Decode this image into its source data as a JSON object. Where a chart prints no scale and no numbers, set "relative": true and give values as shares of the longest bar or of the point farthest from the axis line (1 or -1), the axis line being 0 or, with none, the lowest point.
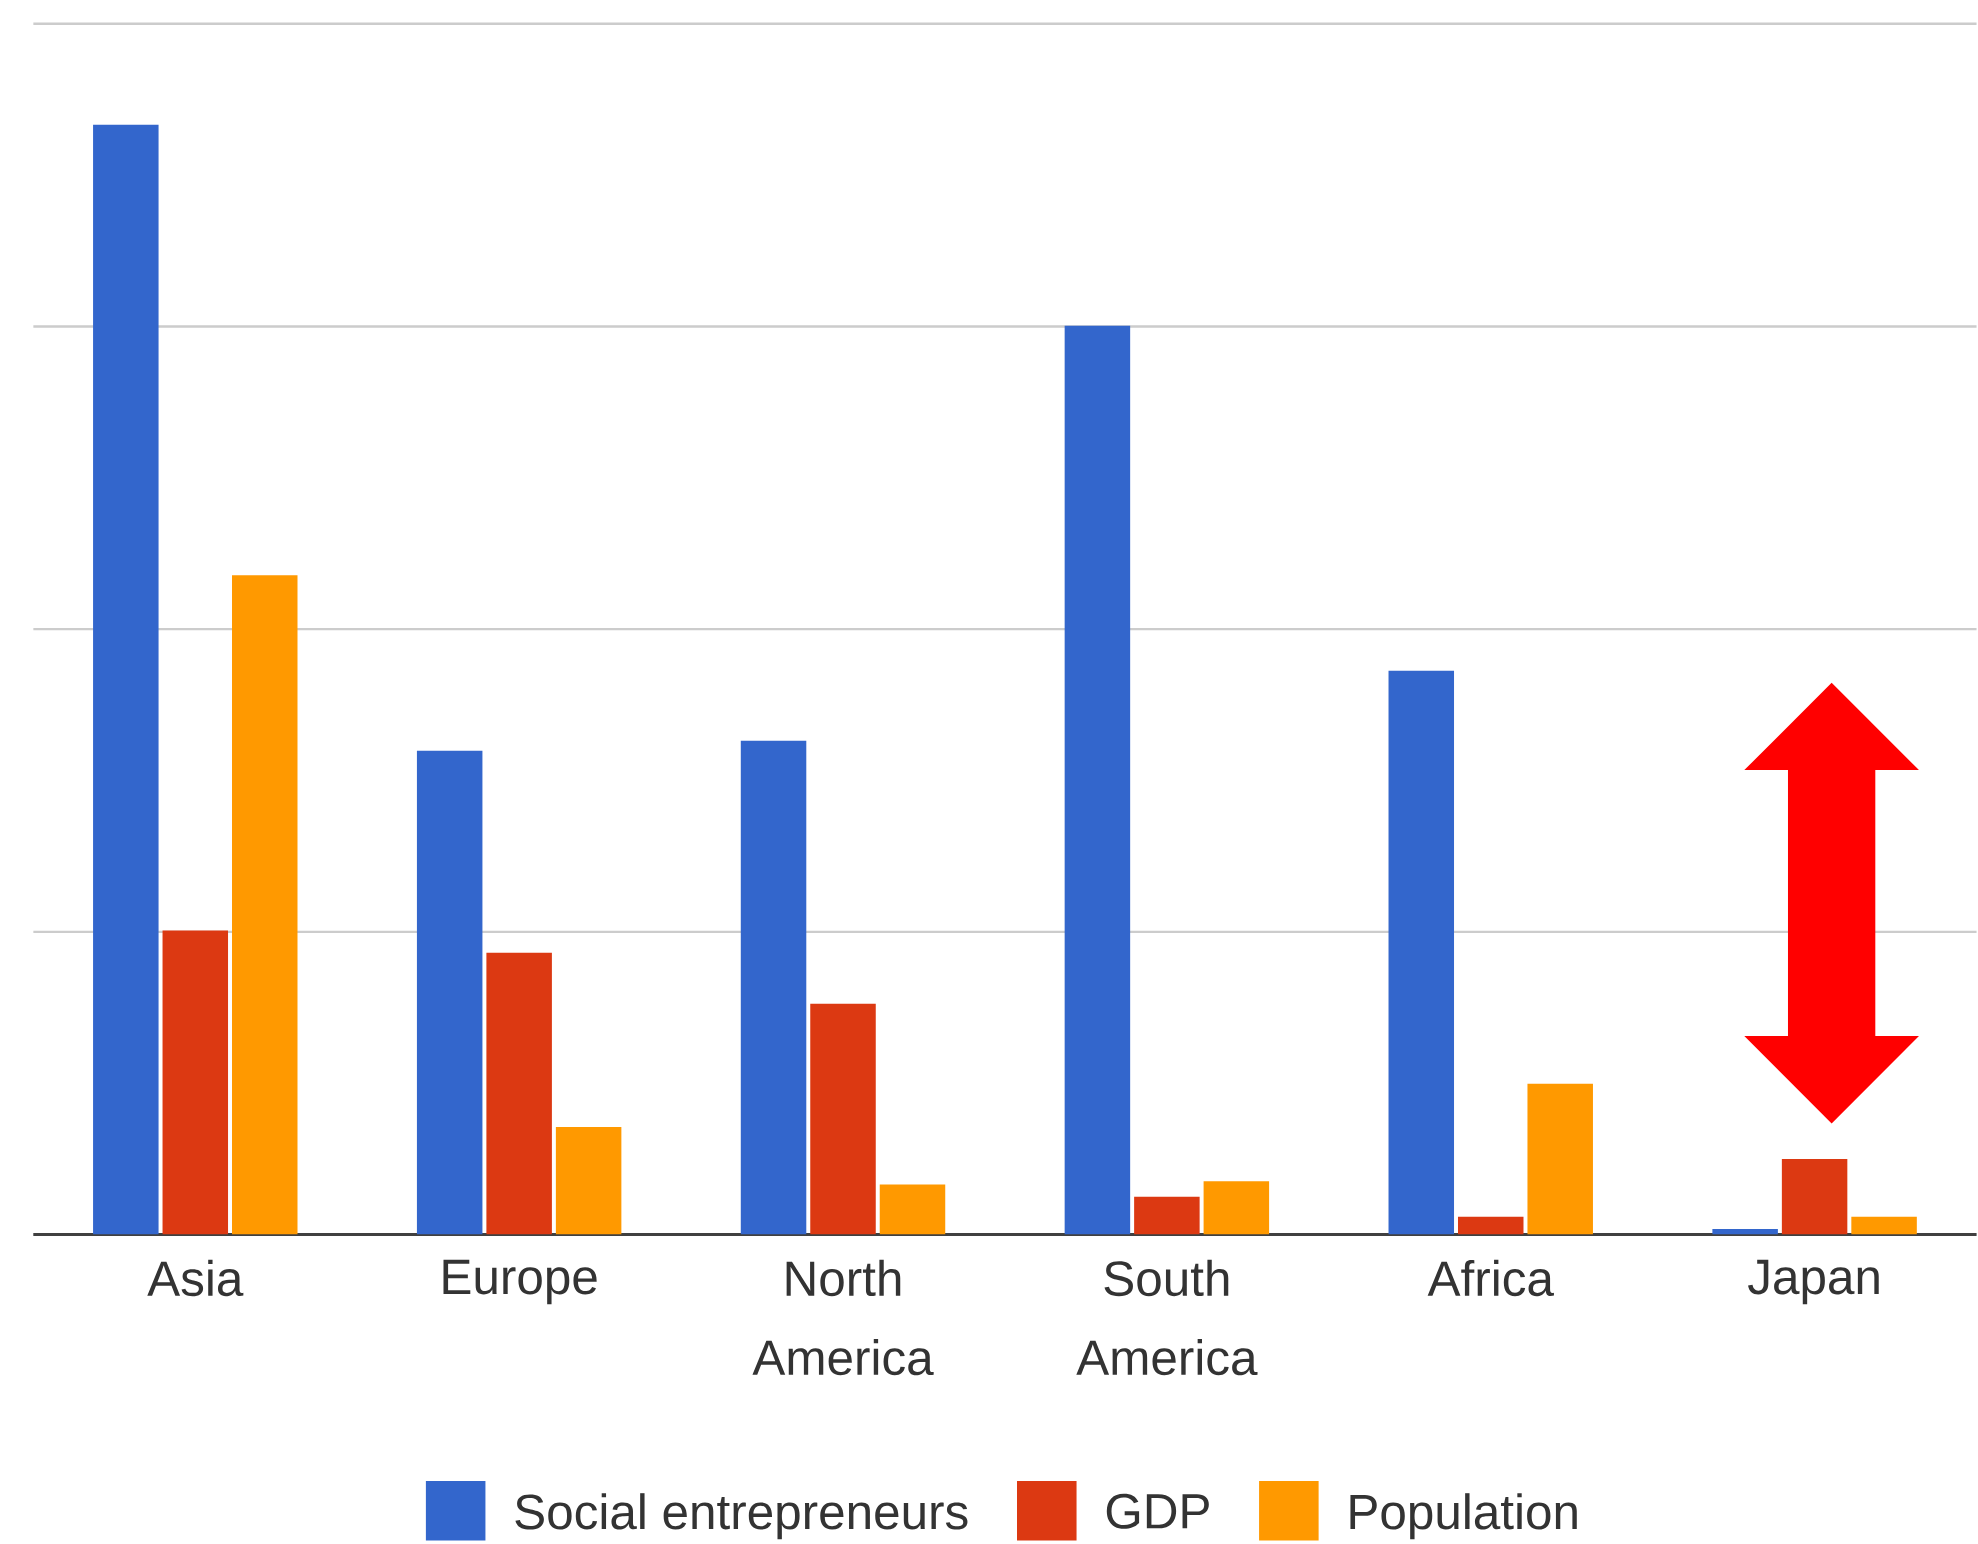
{
  "chart_data": {
    "type": "bar",
    "relative": true,
    "categories": [
      "Asia",
      "Europe",
      "North America",
      "South America",
      "Africa",
      "Japan"
    ],
    "series": [
      {
        "name": "Social entrepreneurs",
        "color": "#3366cc",
        "values": [
          1,
          0.436,
          0.445,
          0.819,
          0.508,
          0.005
        ]
      },
      {
        "name": "GDP",
        "color": "#dc3912",
        "values": [
          0.274,
          0.254,
          0.208,
          0.034,
          0.016,
          0.068
        ]
      },
      {
        "name": "Population",
        "color": "#ff9900",
        "values": [
          0.594,
          0.097,
          0.045,
          0.048,
          0.136,
          0.016
        ]
      }
    ],
    "grid": "y",
    "legend": "bottom"
  }
}
